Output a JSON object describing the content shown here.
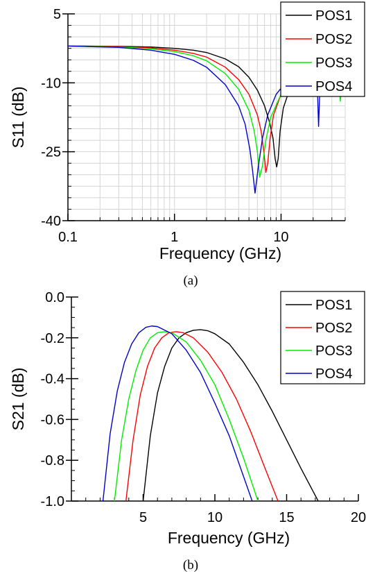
{
  "chart_data": [
    {
      "id": "s11",
      "type": "line",
      "caption": "(a)",
      "xlabel": "Frequency (GHz)",
      "ylabel": "S11 (dB)",
      "xscale": "log",
      "xlim": [
        0.1,
        40
      ],
      "ylim": [
        -40,
        5
      ],
      "xticks": [
        {
          "v": 0.1,
          "label": "0.1"
        },
        {
          "v": 1,
          "label": "1"
        },
        {
          "v": 10,
          "label": "10"
        }
      ],
      "yticks": [
        {
          "v": 5,
          "label": "5"
        },
        {
          "v": -10,
          "label": "-10"
        },
        {
          "v": -25,
          "label": "-25"
        },
        {
          "v": -40,
          "label": "-40"
        }
      ],
      "grid": true,
      "legend": "top-right",
      "series": [
        {
          "name": "POS1",
          "color": "#000000",
          "x": [
            0.1,
            0.3,
            0.6,
            1,
            1.5,
            2,
            3,
            4,
            5,
            6,
            7,
            7.8,
            8.4,
            8.8,
            9.1,
            9.4,
            9.8,
            10.5,
            12,
            15,
            20,
            30,
            40
          ],
          "y": [
            -2.0,
            -2.05,
            -2.2,
            -2.5,
            -2.9,
            -3.4,
            -4.8,
            -6.5,
            -8.8,
            -11.6,
            -15.0,
            -18.6,
            -22.0,
            -26.5,
            -28.3,
            -26.5,
            -20.5,
            -15.5,
            -11.5,
            -9.0,
            -7.5,
            -6.5,
            -6.0
          ]
        },
        {
          "name": "POS2",
          "color": "#ff0000",
          "x": [
            0.1,
            0.3,
            0.6,
            1,
            1.5,
            2,
            3,
            4,
            5,
            6,
            6.5,
            6.9,
            7.2,
            7.5,
            7.9,
            8.5,
            10,
            12,
            15,
            20,
            30,
            40
          ],
          "y": [
            -2.0,
            -2.1,
            -2.4,
            -2.9,
            -3.6,
            -4.4,
            -6.6,
            -9.3,
            -12.5,
            -17.0,
            -20.5,
            -25.0,
            -29.5,
            -27.5,
            -22.0,
            -17.0,
            -12.5,
            -10.0,
            -8.5,
            -7.5,
            -6.5,
            -6.0
          ]
        },
        {
          "name": "POS3",
          "color": "#00ee00",
          "x": [
            0.1,
            0.3,
            0.6,
            1,
            1.5,
            2,
            3,
            4,
            5,
            5.6,
            6.0,
            6.3,
            6.7,
            7.2,
            8,
            10,
            12,
            15,
            20,
            30,
            34.5,
            35.5,
            36,
            36.5,
            37.5,
            40
          ],
          "y": [
            -2.0,
            -2.2,
            -2.6,
            -3.2,
            -4.1,
            -5.2,
            -8.0,
            -11.4,
            -16.0,
            -20.5,
            -25.0,
            -30.5,
            -28.0,
            -22.5,
            -17.5,
            -12.5,
            -10.0,
            -8.5,
            -7.5,
            -6.8,
            -8.5,
            -12.0,
            -14.0,
            -12.0,
            -8.5,
            -7.0
          ]
        },
        {
          "name": "POS4",
          "color": "#0000cc",
          "x": [
            0.1,
            0.3,
            0.6,
            1,
            1.5,
            2,
            3,
            4,
            4.6,
            5.1,
            5.4,
            5.7,
            6.1,
            6.7,
            7.5,
            9,
            11,
            14,
            18,
            21,
            22,
            22.5,
            23,
            24,
            27,
            32,
            40
          ],
          "y": [
            -2.0,
            -2.3,
            -2.9,
            -3.8,
            -5.1,
            -6.6,
            -10.4,
            -15.0,
            -19.0,
            -24.5,
            -29.0,
            -34.0,
            -28.5,
            -22.0,
            -17.0,
            -12.5,
            -10.0,
            -8.5,
            -7.5,
            -7.5,
            -12.0,
            -19.5,
            -13.0,
            -8.5,
            -7.5,
            -7.0,
            -6.5
          ]
        }
      ]
    },
    {
      "id": "s21",
      "type": "line",
      "caption": "(b)",
      "xlabel": "Frequency (GHz)",
      "ylabel": "S21 (dB)",
      "xscale": "linear",
      "xlim": [
        0,
        20
      ],
      "ylim": [
        -1.0,
        0.0
      ],
      "xticks": [
        {
          "v": 5,
          "label": "5"
        },
        {
          "v": 10,
          "label": "10"
        },
        {
          "v": 15,
          "label": "15"
        },
        {
          "v": 20,
          "label": "20"
        }
      ],
      "yticks": [
        {
          "v": 0.0,
          "label": "0.0"
        },
        {
          "v": -0.2,
          "label": "-0.2"
        },
        {
          "v": -0.4,
          "label": "-0.4"
        },
        {
          "v": -0.6,
          "label": "-0.6"
        },
        {
          "v": -0.8,
          "label": "-0.8"
        },
        {
          "v": -1.0,
          "label": "-1.0"
        }
      ],
      "grid": false,
      "legend": "top-right",
      "series": [
        {
          "name": "POS1",
          "color": "#000000",
          "x": [
            5.0,
            5.5,
            6.0,
            6.5,
            7.0,
            7.5,
            8.0,
            8.5,
            9.0,
            9.5,
            10.0,
            11.0,
            12.0,
            13.0,
            14.0,
            15.0,
            16.0,
            17.2
          ],
          "y": [
            -1.0,
            -0.68,
            -0.47,
            -0.34,
            -0.25,
            -0.2,
            -0.175,
            -0.163,
            -0.16,
            -0.165,
            -0.18,
            -0.23,
            -0.32,
            -0.43,
            -0.56,
            -0.7,
            -0.84,
            -1.0
          ]
        },
        {
          "name": "POS2",
          "color": "#ff0000",
          "x": [
            3.8,
            4.3,
            4.8,
            5.3,
            5.8,
            6.3,
            6.8,
            7.3,
            7.8,
            8.5,
            9.5,
            10.5,
            11.5,
            12.5,
            13.5,
            14.4
          ],
          "y": [
            -1.0,
            -0.7,
            -0.48,
            -0.34,
            -0.25,
            -0.2,
            -0.175,
            -0.17,
            -0.175,
            -0.2,
            -0.27,
            -0.37,
            -0.5,
            -0.66,
            -0.84,
            -1.0
          ]
        },
        {
          "name": "POS3",
          "color": "#00ee00",
          "x": [
            3.0,
            3.5,
            4.0,
            4.5,
            5.0,
            5.5,
            6.0,
            6.5,
            7.0,
            8.0,
            9.0,
            10.0,
            11.0,
            12.0,
            13.0
          ],
          "y": [
            -1.0,
            -0.7,
            -0.5,
            -0.36,
            -0.26,
            -0.2,
            -0.175,
            -0.17,
            -0.175,
            -0.22,
            -0.31,
            -0.43,
            -0.6,
            -0.79,
            -1.0
          ]
        },
        {
          "name": "POS4",
          "color": "#0000cc",
          "x": [
            2.2,
            2.7,
            3.2,
            3.7,
            4.2,
            4.7,
            5.2,
            5.6,
            6.0,
            7.0,
            8.0,
            9.0,
            10.0,
            11.0,
            12.0,
            12.6
          ],
          "y": [
            -1.0,
            -0.67,
            -0.46,
            -0.32,
            -0.23,
            -0.175,
            -0.148,
            -0.142,
            -0.145,
            -0.18,
            -0.26,
            -0.37,
            -0.52,
            -0.68,
            -0.88,
            -1.0
          ]
        }
      ]
    }
  ]
}
